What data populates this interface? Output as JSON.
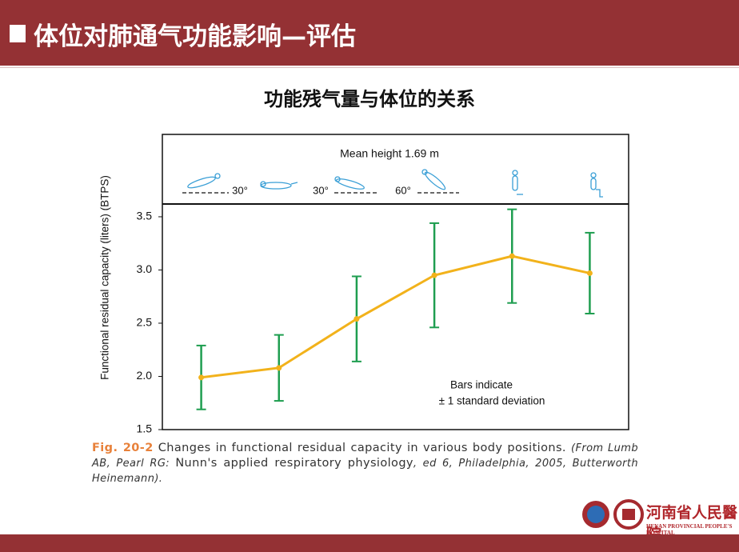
{
  "header": {
    "title": "体位对肺通气功能影响—评估"
  },
  "subtitle": "功能残气量与体位的关系",
  "chart_data": {
    "type": "line",
    "annotation_top": "Mean height 1.69 m",
    "angle_labels": [
      "30°",
      "30°",
      "60°"
    ],
    "note_lines": [
      "Bars indicate",
      "± 1 standard deviation"
    ],
    "y_label": "Functional residual capacity (liters) (BTPS)",
    "categories": [
      null,
      null,
      null,
      null,
      null,
      null
    ],
    "values": [
      1.99,
      2.08,
      2.54,
      2.95,
      3.13,
      2.97
    ],
    "errors": [
      0.3,
      0.31,
      0.4,
      0.49,
      0.44,
      0.38
    ],
    "color": "#f2b21b",
    "error_color": "#1f9e50",
    "ylim": [
      1.5,
      3.62
    ],
    "yticks": [
      1.5,
      {
        "value": 2,
        "label": "2.0"
      },
      2.5,
      {
        "value": 3,
        "label": "3.0"
      },
      3.5
    ]
  },
  "caption": {
    "fig": "Fig. 20-2",
    "text": "Changes in functional residual capacity in various body positions.",
    "source_a": "(From Lumb AB, Pearl RG: ",
    "book": "Nunn's applied respiratory physiology",
    "source_b": ", ed 6, Philadelphia, 2005, Butterworth Heinemann)."
  },
  "logo": {
    "name": "河南省人民醫院",
    "english": "HENAN PROVINCIAL PEOPLE'S HOSPITAL"
  }
}
